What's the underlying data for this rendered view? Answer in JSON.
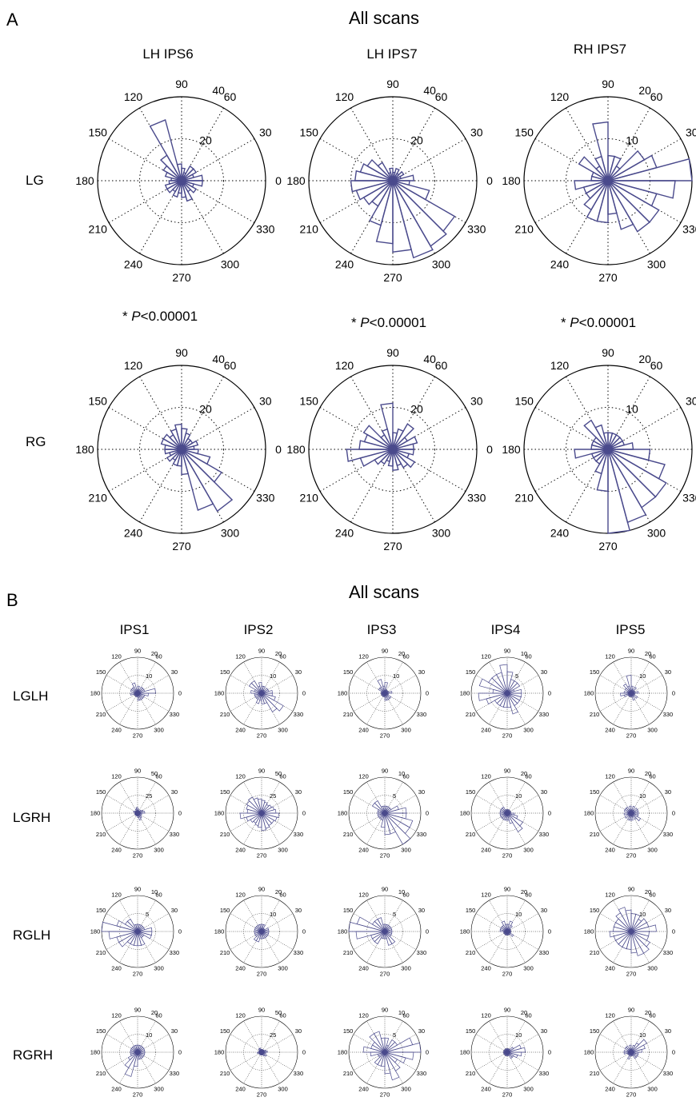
{
  "panel_a": {
    "letter": "A",
    "title": "All scans",
    "columns": [
      "LH IPS6",
      "LH IPS7",
      "RH IPS7"
    ],
    "rows": [
      "LG",
      "RG"
    ],
    "pvalues": [
      {
        "prefix": "* ",
        "italic": "P",
        "suffix": "<0.00001"
      },
      {
        "prefix": "* ",
        "italic": "P",
        "suffix": "<0.00001"
      },
      {
        "prefix": "* ",
        "italic": "P",
        "suffix": "<0.00001"
      }
    ]
  },
  "panel_b": {
    "letter": "B",
    "title": "All scans",
    "columns": [
      "IPS1",
      "IPS2",
      "IPS3",
      "IPS4",
      "IPS5"
    ],
    "rows": [
      "LGLH",
      "LGRH",
      "RGLH",
      "RGRH"
    ]
  },
  "colors": {
    "bars": "#4a4a8c",
    "axis": "#000000"
  },
  "chart_data": [
    {
      "type": "polar-histogram",
      "panel": "A",
      "row": "LG",
      "column": "LH IPS6",
      "rticks": [
        20,
        40
      ],
      "rmax": 40,
      "angles": [
        0,
        30,
        60,
        90,
        120,
        150,
        180,
        210,
        240,
        270,
        300,
        330
      ],
      "values": [
        10,
        6,
        8,
        8,
        4,
        6,
        8,
        30,
        14,
        10,
        8,
        5,
        6,
        8,
        8,
        6,
        8,
        6,
        8,
        10,
        6,
        8,
        6,
        10
      ]
    },
    {
      "type": "polar-histogram",
      "panel": "A",
      "row": "LG",
      "column": "LH IPS7",
      "rticks": [
        20,
        40
      ],
      "rmax": 40,
      "angles": [
        0,
        30,
        60,
        90,
        120,
        150,
        180,
        210,
        240,
        270,
        300,
        330
      ],
      "values": [
        10,
        4,
        6,
        4,
        6,
        4,
        6,
        4,
        10,
        14,
        16,
        18,
        20,
        18,
        16,
        14,
        22,
        30,
        34,
        38,
        36,
        34,
        18,
        8
      ]
    },
    {
      "type": "polar-histogram",
      "panel": "A",
      "row": "LG",
      "column": "RH IPS7",
      "rticks": [
        10,
        20
      ],
      "rmax": 20,
      "angles": [
        0,
        30,
        60,
        90,
        120,
        150,
        180,
        210,
        240,
        270,
        300,
        330
      ],
      "values": [
        20,
        12,
        10,
        4,
        6,
        6,
        14,
        6,
        4,
        8,
        4,
        4,
        8,
        6,
        6,
        8,
        10,
        10,
        8,
        12,
        14,
        14,
        12,
        16
      ]
    },
    {
      "type": "polar-histogram",
      "panel": "A",
      "row": "RG",
      "column": "LH IPS6",
      "rticks": [
        20,
        40
      ],
      "rmax": 40,
      "angles": [
        0,
        30,
        60,
        90,
        120,
        150,
        180,
        210,
        240,
        270,
        300,
        330
      ],
      "values": [
        6,
        8,
        6,
        6,
        8,
        10,
        12,
        10,
        8,
        10,
        10,
        8,
        8,
        6,
        8,
        6,
        8,
        8,
        12,
        30,
        34,
        22,
        14,
        8
      ]
    },
    {
      "type": "polar-histogram",
      "panel": "A",
      "row": "RG",
      "column": "LH IPS7",
      "rticks": [
        20,
        40
      ],
      "rmax": 40,
      "angles": [
        0,
        30,
        60,
        90,
        120,
        150,
        180,
        210,
        240,
        270,
        300,
        330
      ],
      "values": [
        10,
        12,
        8,
        14,
        10,
        8,
        22,
        10,
        8,
        16,
        14,
        16,
        22,
        16,
        10,
        8,
        6,
        8,
        10,
        8,
        10,
        12,
        8,
        10
      ]
    },
    {
      "type": "polar-histogram",
      "panel": "A",
      "row": "RG",
      "column": "RH IPS7",
      "rticks": [
        10,
        20
      ],
      "rmax": 20,
      "angles": [
        0,
        30,
        60,
        90,
        120,
        150,
        180,
        210,
        240,
        270,
        300,
        330
      ],
      "values": [
        6,
        4,
        4,
        4,
        4,
        4,
        4,
        6,
        8,
        4,
        4,
        4,
        8,
        4,
        4,
        4,
        6,
        10,
        20,
        18,
        16,
        16,
        14,
        10
      ]
    },
    {
      "type": "polar-histogram",
      "panel": "B",
      "row": "LGLH",
      "column": "IPS1",
      "rticks": [
        10,
        20
      ],
      "rmax": 20,
      "angles": [
        0,
        30,
        60,
        90,
        120,
        150,
        180,
        210,
        240,
        270,
        300,
        330
      ],
      "values": [
        10,
        4,
        4,
        4,
        2,
        4,
        2,
        6,
        4,
        4,
        4,
        2,
        4,
        2,
        2,
        2,
        2,
        2,
        4,
        4,
        4,
        4,
        4,
        6
      ]
    },
    {
      "type": "polar-histogram",
      "panel": "B",
      "row": "LGLH",
      "column": "IPS2",
      "rticks": [
        10,
        20
      ],
      "rmax": 20,
      "angles": [
        0,
        30,
        60,
        90,
        120,
        150,
        180,
        210,
        240,
        270,
        300,
        330
      ],
      "values": [
        6,
        4,
        4,
        2,
        4,
        4,
        6,
        4,
        8,
        8,
        4,
        6,
        4,
        4,
        4,
        4,
        6,
        4,
        6,
        6,
        12,
        14,
        8,
        6
      ]
    },
    {
      "type": "polar-histogram",
      "panel": "B",
      "row": "LGLH",
      "column": "IPS3",
      "rticks": [
        10,
        20
      ],
      "rmax": 20,
      "angles": [
        0,
        30,
        60,
        90,
        120,
        150,
        180,
        210,
        240,
        270,
        300,
        330
      ],
      "values": [
        4,
        2,
        2,
        2,
        2,
        6,
        4,
        8,
        4,
        4,
        2,
        2,
        2,
        2,
        2,
        2,
        2,
        2,
        4,
        4,
        4,
        4,
        2,
        2
      ]
    },
    {
      "type": "polar-histogram",
      "panel": "B",
      "row": "LGLH",
      "column": "IPS4",
      "rticks": [
        5,
        10
      ],
      "rmax": 10,
      "angles": [
        0,
        30,
        60,
        90,
        120,
        150,
        180,
        210,
        240,
        270,
        300,
        330
      ],
      "values": [
        4,
        2,
        4,
        4,
        4,
        6,
        8,
        6,
        6,
        6,
        8,
        4,
        8,
        6,
        4,
        4,
        4,
        4,
        4,
        6,
        4,
        4,
        4,
        4
      ]
    },
    {
      "type": "polar-histogram",
      "panel": "B",
      "row": "LGLH",
      "column": "IPS5",
      "rticks": [
        10,
        20
      ],
      "rmax": 20,
      "angles": [
        0,
        30,
        60,
        90,
        120,
        150,
        180,
        210,
        240,
        270,
        300,
        330
      ],
      "values": [
        4,
        2,
        2,
        4,
        2,
        4,
        10,
        4,
        6,
        4,
        2,
        4,
        6,
        4,
        2,
        2,
        2,
        2,
        2,
        4,
        2,
        4,
        2,
        2
      ]
    },
    {
      "type": "polar-histogram",
      "panel": "B",
      "row": "LGRH",
      "column": "IPS1",
      "rticks": [
        25,
        50
      ],
      "rmax": 50,
      "angles": [
        0,
        30,
        60,
        90,
        120,
        150,
        180,
        210,
        240,
        270,
        300,
        330
      ],
      "values": [
        10,
        8,
        6,
        4,
        4,
        6,
        8,
        6,
        4,
        4,
        6,
        4,
        4,
        4,
        4,
        4,
        4,
        4,
        6,
        10,
        8,
        6,
        4,
        6
      ]
    },
    {
      "type": "polar-histogram",
      "panel": "B",
      "row": "LGRH",
      "column": "IPS2",
      "rticks": [
        25,
        50
      ],
      "rmax": 50,
      "angles": [
        0,
        30,
        60,
        90,
        120,
        150,
        180,
        210,
        240,
        270,
        300,
        330
      ],
      "values": [
        20,
        18,
        16,
        14,
        16,
        18,
        20,
        22,
        26,
        24,
        22,
        20,
        30,
        22,
        18,
        16,
        18,
        20,
        24,
        22,
        20,
        20,
        22,
        24
      ]
    },
    {
      "type": "polar-histogram",
      "panel": "B",
      "row": "LGRH",
      "column": "IPS3",
      "rticks": [
        5,
        10
      ],
      "rmax": 10,
      "angles": [
        0,
        30,
        60,
        90,
        120,
        150,
        180,
        210,
        240,
        270,
        300,
        330
      ],
      "values": [
        6,
        4,
        2,
        2,
        2,
        2,
        2,
        2,
        4,
        4,
        2,
        2,
        2,
        2,
        2,
        2,
        2,
        4,
        6,
        6,
        10,
        8,
        8,
        6
      ]
    },
    {
      "type": "polar-histogram",
      "panel": "B",
      "row": "LGRH",
      "column": "IPS4",
      "rticks": [
        10,
        20
      ],
      "rmax": 20,
      "angles": [
        0,
        30,
        60,
        90,
        120,
        150,
        180,
        210,
        240,
        270,
        300,
        330
      ],
      "values": [
        2,
        2,
        2,
        2,
        2,
        2,
        2,
        2,
        4,
        4,
        4,
        4,
        4,
        4,
        4,
        4,
        4,
        4,
        4,
        6,
        12,
        10,
        6,
        4
      ]
    },
    {
      "type": "polar-histogram",
      "panel": "B",
      "row": "LGRH",
      "column": "IPS5",
      "rticks": [
        10,
        20
      ],
      "rmax": 20,
      "angles": [
        0,
        30,
        60,
        90,
        120,
        150,
        180,
        210,
        240,
        270,
        300,
        330
      ],
      "values": [
        4,
        4,
        4,
        2,
        4,
        2,
        4,
        2,
        4,
        4,
        4,
        2,
        4,
        2,
        4,
        2,
        4,
        4,
        4,
        2,
        4,
        6,
        4,
        4
      ]
    },
    {
      "type": "polar-histogram",
      "panel": "B",
      "row": "RGLH",
      "column": "IPS1",
      "rticks": [
        5,
        10
      ],
      "rmax": 10,
      "angles": [
        0,
        30,
        60,
        90,
        120,
        150,
        180,
        210,
        240,
        270,
        300,
        330
      ],
      "values": [
        4,
        2,
        2,
        2,
        2,
        2,
        2,
        2,
        4,
        4,
        6,
        12,
        8,
        6,
        6,
        4,
        4,
        4,
        4,
        4,
        2,
        2,
        4,
        4
      ]
    },
    {
      "type": "polar-histogram",
      "panel": "B",
      "row": "RGLH",
      "column": "IPS2",
      "rticks": [
        10,
        20
      ],
      "rmax": 20,
      "angles": [
        0,
        30,
        60,
        90,
        120,
        150,
        180,
        210,
        240,
        270,
        300,
        330
      ],
      "values": [
        4,
        4,
        2,
        2,
        4,
        4,
        4,
        4,
        4,
        4,
        4,
        4,
        4,
        4,
        4,
        6,
        6,
        4,
        4,
        4,
        4,
        4,
        4,
        4
      ]
    },
    {
      "type": "polar-histogram",
      "panel": "B",
      "row": "RGLH",
      "column": "IPS3",
      "rticks": [
        5,
        10
      ],
      "rmax": 10,
      "angles": [
        0,
        30,
        60,
        90,
        120,
        150,
        180,
        210,
        240,
        270,
        300,
        330
      ],
      "values": [
        2,
        2,
        2,
        2,
        2,
        2,
        2,
        4,
        4,
        4,
        8,
        10,
        8,
        4,
        4,
        4,
        2,
        2,
        2,
        4,
        4,
        2,
        2,
        2
      ]
    },
    {
      "type": "polar-histogram",
      "panel": "B",
      "row": "RGLH",
      "column": "IPS4",
      "rticks": [
        10,
        20
      ],
      "rmax": 20,
      "angles": [
        0,
        30,
        60,
        90,
        120,
        150,
        180,
        210,
        240,
        270,
        300,
        330
      ],
      "values": [
        2,
        2,
        2,
        4,
        6,
        4,
        4,
        6,
        4,
        4,
        4,
        4,
        2,
        2,
        2,
        2,
        2,
        2,
        2,
        2,
        2,
        4,
        2,
        2
      ]
    },
    {
      "type": "polar-histogram",
      "panel": "B",
      "row": "RGLH",
      "column": "IPS5",
      "rticks": [
        10,
        20
      ],
      "rmax": 20,
      "angles": [
        0,
        30,
        60,
        90,
        120,
        150,
        180,
        210,
        240,
        270,
        300,
        330
      ],
      "values": [
        14,
        10,
        10,
        8,
        10,
        10,
        12,
        14,
        12,
        10,
        10,
        10,
        12,
        10,
        10,
        10,
        10,
        10,
        12,
        14,
        14,
        12,
        10,
        10
      ]
    },
    {
      "type": "polar-histogram",
      "panel": "B",
      "row": "RGRH",
      "column": "IPS1",
      "rticks": [
        10,
        20
      ],
      "rmax": 20,
      "angles": [
        0,
        30,
        60,
        90,
        120,
        150,
        180,
        210,
        240,
        270,
        300,
        330
      ],
      "values": [
        4,
        4,
        4,
        4,
        4,
        4,
        4,
        4,
        4,
        4,
        4,
        4,
        4,
        4,
        6,
        10,
        14,
        8,
        4,
        4,
        4,
        4,
        4,
        4
      ]
    },
    {
      "type": "polar-histogram",
      "panel": "B",
      "row": "RGRH",
      "column": "IPS2",
      "rticks": [
        25,
        50
      ],
      "rmax": 50,
      "angles": [
        0,
        30,
        60,
        90,
        120,
        150,
        180,
        210,
        240,
        270,
        300,
        330
      ],
      "values": [
        8,
        6,
        4,
        4,
        4,
        4,
        4,
        6,
        6,
        4,
        4,
        4,
        6,
        4,
        4,
        4,
        4,
        4,
        4,
        4,
        6,
        8,
        4,
        6
      ]
    },
    {
      "type": "polar-histogram",
      "panel": "B",
      "row": "RGRH",
      "column": "IPS3",
      "rticks": [
        5,
        10
      ],
      "rmax": 10,
      "angles": [
        0,
        30,
        60,
        90,
        120,
        150,
        180,
        210,
        240,
        270,
        300,
        330
      ],
      "values": [
        10,
        8,
        4,
        4,
        2,
        4,
        4,
        6,
        6,
        4,
        4,
        6,
        4,
        2,
        2,
        4,
        4,
        4,
        6,
        8,
        6,
        4,
        6,
        8
      ]
    },
    {
      "type": "polar-histogram",
      "panel": "B",
      "row": "RGRH",
      "column": "IPS4",
      "rticks": [
        10,
        20
      ],
      "rmax": 20,
      "angles": [
        0,
        30,
        60,
        90,
        120,
        150,
        180,
        210,
        240,
        270,
        300,
        330
      ],
      "values": [
        10,
        8,
        4,
        2,
        2,
        2,
        2,
        2,
        2,
        2,
        2,
        2,
        2,
        2,
        2,
        2,
        2,
        2,
        2,
        2,
        4,
        4,
        6,
        8
      ]
    },
    {
      "type": "polar-histogram",
      "panel": "B",
      "row": "RGRH",
      "column": "IPS5",
      "rticks": [
        10,
        20
      ],
      "rmax": 20,
      "angles": [
        0,
        30,
        60,
        90,
        120,
        150,
        180,
        210,
        240,
        270,
        300,
        330
      ],
      "values": [
        6,
        8,
        10,
        6,
        4,
        2,
        4,
        2,
        4,
        4,
        2,
        4,
        4,
        2,
        2,
        2,
        4,
        2,
        2,
        2,
        4,
        4,
        4,
        4
      ]
    }
  ]
}
